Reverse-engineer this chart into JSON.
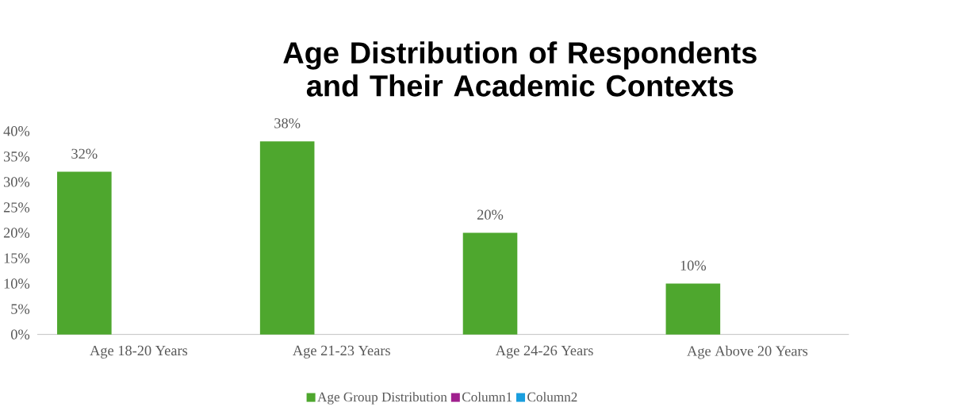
{
  "chart_data": {
    "type": "bar",
    "title": "Age Distribution of Respondents and Their Academic Contexts",
    "categories": [
      "Age 18-20 Years",
      "Age 21-23 Years",
      "Age 24-26 Years",
      "Age  Above 20 Years"
    ],
    "series": [
      {
        "name": "Age Group Distribution",
        "color": "#4ea72e",
        "values": [
          32,
          38,
          20,
          10
        ],
        "value_labels": [
          "32%",
          "38%",
          "20%",
          "10%"
        ]
      },
      {
        "name": "Column1",
        "color": "#a0208e",
        "values": [
          null,
          null,
          null,
          null
        ]
      },
      {
        "name": "Column2",
        "color": "#1a9ede",
        "values": [
          null,
          null,
          null,
          null
        ]
      }
    ],
    "ylim": [
      0,
      40
    ],
    "yticks": [
      {
        "value": 0,
        "label": "0%"
      },
      {
        "value": 5,
        "label": "5%"
      },
      {
        "value": 10,
        "label": "10%"
      },
      {
        "value": 15,
        "label": "15%"
      },
      {
        "value": 20,
        "label": "20%"
      },
      {
        "value": 25,
        "label": "25%"
      },
      {
        "value": 30,
        "label": "30%"
      },
      {
        "value": 35,
        "label": "35%"
      },
      {
        "value": 40,
        "label": "40%"
      }
    ],
    "grid": false,
    "legend": "bottom"
  }
}
